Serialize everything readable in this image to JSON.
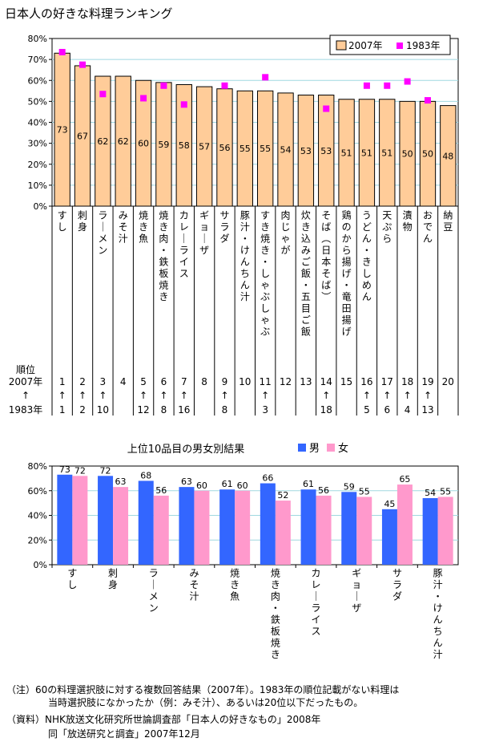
{
  "title": "日本人の好きな料理ランキング",
  "chart_data": [
    {
      "type": "bar",
      "categories": [
        "すし",
        "刺身",
        "ラーメン",
        "みそ汁",
        "焼き魚",
        "焼き肉・鉄板焼き",
        "カレーライス",
        "ギョーザ",
        "サラダ",
        "豚汁・けんちん汁",
        "すき焼き・しゃぶしゃぶ",
        "肉じゃが",
        "炊き込みご飯・五目ご飯",
        "そば（日本そば）",
        "鶏のから揚げ・竜田揚げ",
        "うどん・きしめん",
        "天ぷら",
        "漬物",
        "おでん",
        "納豆"
      ],
      "series": [
        {
          "name": "2007年",
          "values": [
            73,
            67,
            62,
            62,
            60,
            59,
            58,
            57,
            56,
            55,
            55,
            54,
            53,
            53,
            51,
            51,
            51,
            50,
            50,
            48
          ],
          "color": "#FFCC99"
        },
        {
          "name": "1983年",
          "values": [
            73.5,
            67.5,
            53.5,
            null,
            51.5,
            57.5,
            48.5,
            null,
            57.5,
            null,
            61.5,
            null,
            null,
            46.5,
            null,
            57.5,
            57.5,
            59.5,
            50.5,
            null
          ],
          "color": "#FF00FF"
        }
      ],
      "yticks": [
        "0%",
        "10%",
        "20%",
        "30%",
        "40%",
        "50%",
        "60%",
        "70%",
        "80%"
      ],
      "ylim": [
        0,
        80
      ],
      "legend_position": "top-right",
      "rank_header": [
        "順位",
        "2007年",
        "↑",
        "1983年"
      ],
      "rank_2007": [
        "1",
        "2",
        "3",
        "4",
        "5",
        "6",
        "7",
        "8",
        "9",
        "10",
        "11",
        "12",
        "13",
        "14",
        "15",
        "16",
        "17",
        "18",
        "19",
        "20"
      ],
      "rank_arrows": [
        "↑",
        "↑",
        "↑",
        "",
        "↑",
        "↑",
        "↑",
        "",
        "↑",
        "",
        "↑",
        "",
        "",
        "↑",
        "",
        "↑",
        "↑",
        "↑",
        "↑",
        ""
      ],
      "rank_1983": [
        "1",
        "2",
        "10",
        "",
        "12",
        "8",
        "16",
        "",
        "8",
        "",
        "3",
        "",
        "",
        "18",
        "",
        "5",
        "6",
        "4",
        "13",
        ""
      ]
    },
    {
      "type": "bar",
      "title": "上位10品目の男女別結果",
      "categories": [
        "すし",
        "刺身",
        "ラーメン",
        "みそ汁",
        "焼き魚",
        "焼き肉・鉄板焼き",
        "カレーライス",
        "ギョーザ",
        "サラダ",
        "豚汁・けんちん汁"
      ],
      "series": [
        {
          "name": "男",
          "values": [
            73,
            72,
            68,
            63,
            61,
            66,
            61,
            59,
            45,
            54
          ],
          "color": "#3366FF"
        },
        {
          "name": "女",
          "values": [
            72,
            63,
            56,
            60,
            60,
            52,
            56,
            55,
            65,
            55
          ],
          "color": "#FF99CC"
        }
      ],
      "yticks": [
        "0%",
        "20%",
        "40%",
        "60%",
        "80%"
      ],
      "ylim": [
        0,
        80
      ],
      "legend_position": "top-right"
    }
  ],
  "notes": {
    "note1_prefix": "（注）",
    "note1_line1": "60の料理選択肢に対する複数回答結果（2007年）。1983年の順位記載がない料理は",
    "note1_line2": "当時選択肢になかったか（例：みそ汁）、あるいは20位以下だったもの。",
    "source_prefix": "（資料）",
    "source_line1": "NHK放送文化研究所世論調査部「日本人の好きなもの」2008年",
    "source_line2": "同「放送研究と調査」2007年12月"
  }
}
